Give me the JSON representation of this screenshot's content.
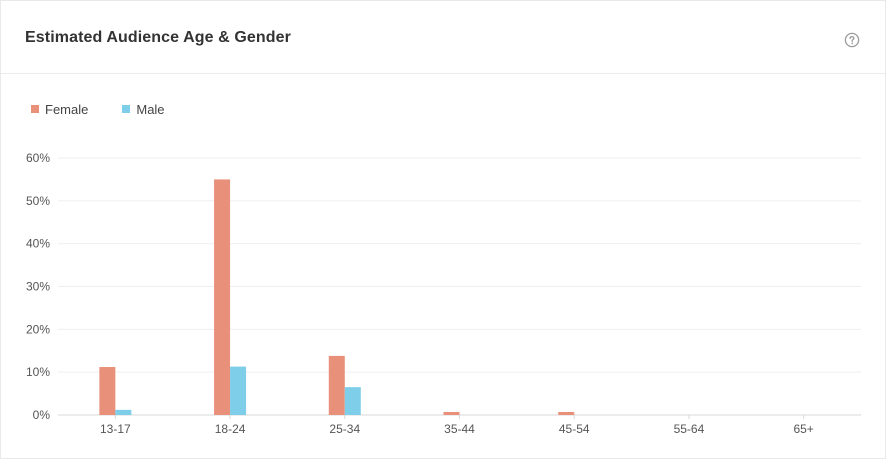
{
  "header": {
    "title": "Estimated Audience Age & Gender",
    "help_icon": "question-circle-icon"
  },
  "colors": {
    "female": "#E8907A",
    "male": "#7ECEEA",
    "grid": "#efefef",
    "axis": "#d9d9d9"
  },
  "chart_data": {
    "type": "bar",
    "title": "",
    "xlabel": "",
    "ylabel": "",
    "ylim": [
      0,
      60
    ],
    "y_ticks": [
      "0%",
      "10%",
      "20%",
      "30%",
      "40%",
      "50%",
      "60%"
    ],
    "y_tick_values": [
      0,
      10,
      20,
      30,
      40,
      50,
      60
    ],
    "categories": [
      "13-17",
      "18-24",
      "25-34",
      "35-44",
      "45-54",
      "55-64",
      "65+"
    ],
    "legend_position": "top-left",
    "grid": true,
    "series": [
      {
        "name": "Female",
        "values": [
          11.2,
          55,
          13.8,
          0.7,
          0.7,
          0,
          0
        ]
      },
      {
        "name": "Male",
        "values": [
          1.2,
          11.3,
          6.5,
          0,
          0,
          0,
          0
        ]
      }
    ]
  }
}
